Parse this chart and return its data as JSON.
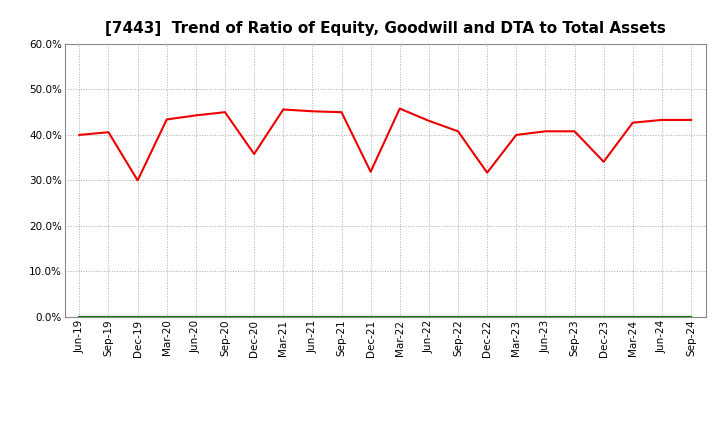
{
  "title": "[7443]  Trend of Ratio of Equity, Goodwill and DTA to Total Assets",
  "x_labels": [
    "Jun-19",
    "Sep-19",
    "Dec-19",
    "Mar-20",
    "Jun-20",
    "Sep-20",
    "Dec-20",
    "Mar-21",
    "Jun-21",
    "Sep-21",
    "Dec-21",
    "Mar-22",
    "Jun-22",
    "Sep-22",
    "Dec-22",
    "Mar-23",
    "Jun-23",
    "Sep-23",
    "Dec-23",
    "Mar-24",
    "Jun-24",
    "Sep-24"
  ],
  "equity": [
    0.4,
    0.406,
    0.3,
    0.434,
    0.443,
    0.45,
    0.358,
    0.456,
    0.452,
    0.45,
    0.319,
    0.458,
    0.431,
    0.408,
    0.317,
    0.4,
    0.408,
    0.408,
    0.341,
    0.427,
    0.433,
    0.433
  ],
  "goodwill": [
    0.0,
    0.0,
    0.0,
    0.0,
    0.0,
    0.0,
    0.0,
    0.0,
    0.0,
    0.0,
    0.0,
    0.0,
    0.0,
    0.0,
    0.0,
    0.0,
    0.0,
    0.0,
    0.0,
    0.0,
    0.0,
    0.0
  ],
  "dta": [
    0.0,
    0.0,
    0.0,
    0.0,
    0.0,
    0.0,
    0.0,
    0.0,
    0.0,
    0.0,
    0.0,
    0.0,
    0.0,
    0.0,
    0.0,
    0.0,
    0.0,
    0.0,
    0.0,
    0.0,
    0.0,
    0.0
  ],
  "equity_color": "#EE0000",
  "goodwill_color": "#0000CC",
  "dta_color": "#007700",
  "background_color": "#FFFFFF",
  "plot_bg_color": "#FFFFFF",
  "grid_color": "#AAAAAA",
  "ylim": [
    0.0,
    0.6
  ],
  "yticks": [
    0.0,
    0.1,
    0.2,
    0.3,
    0.4,
    0.5,
    0.6
  ],
  "title_fontsize": 11,
  "tick_fontsize": 7.5,
  "legend_fontsize": 8.5
}
